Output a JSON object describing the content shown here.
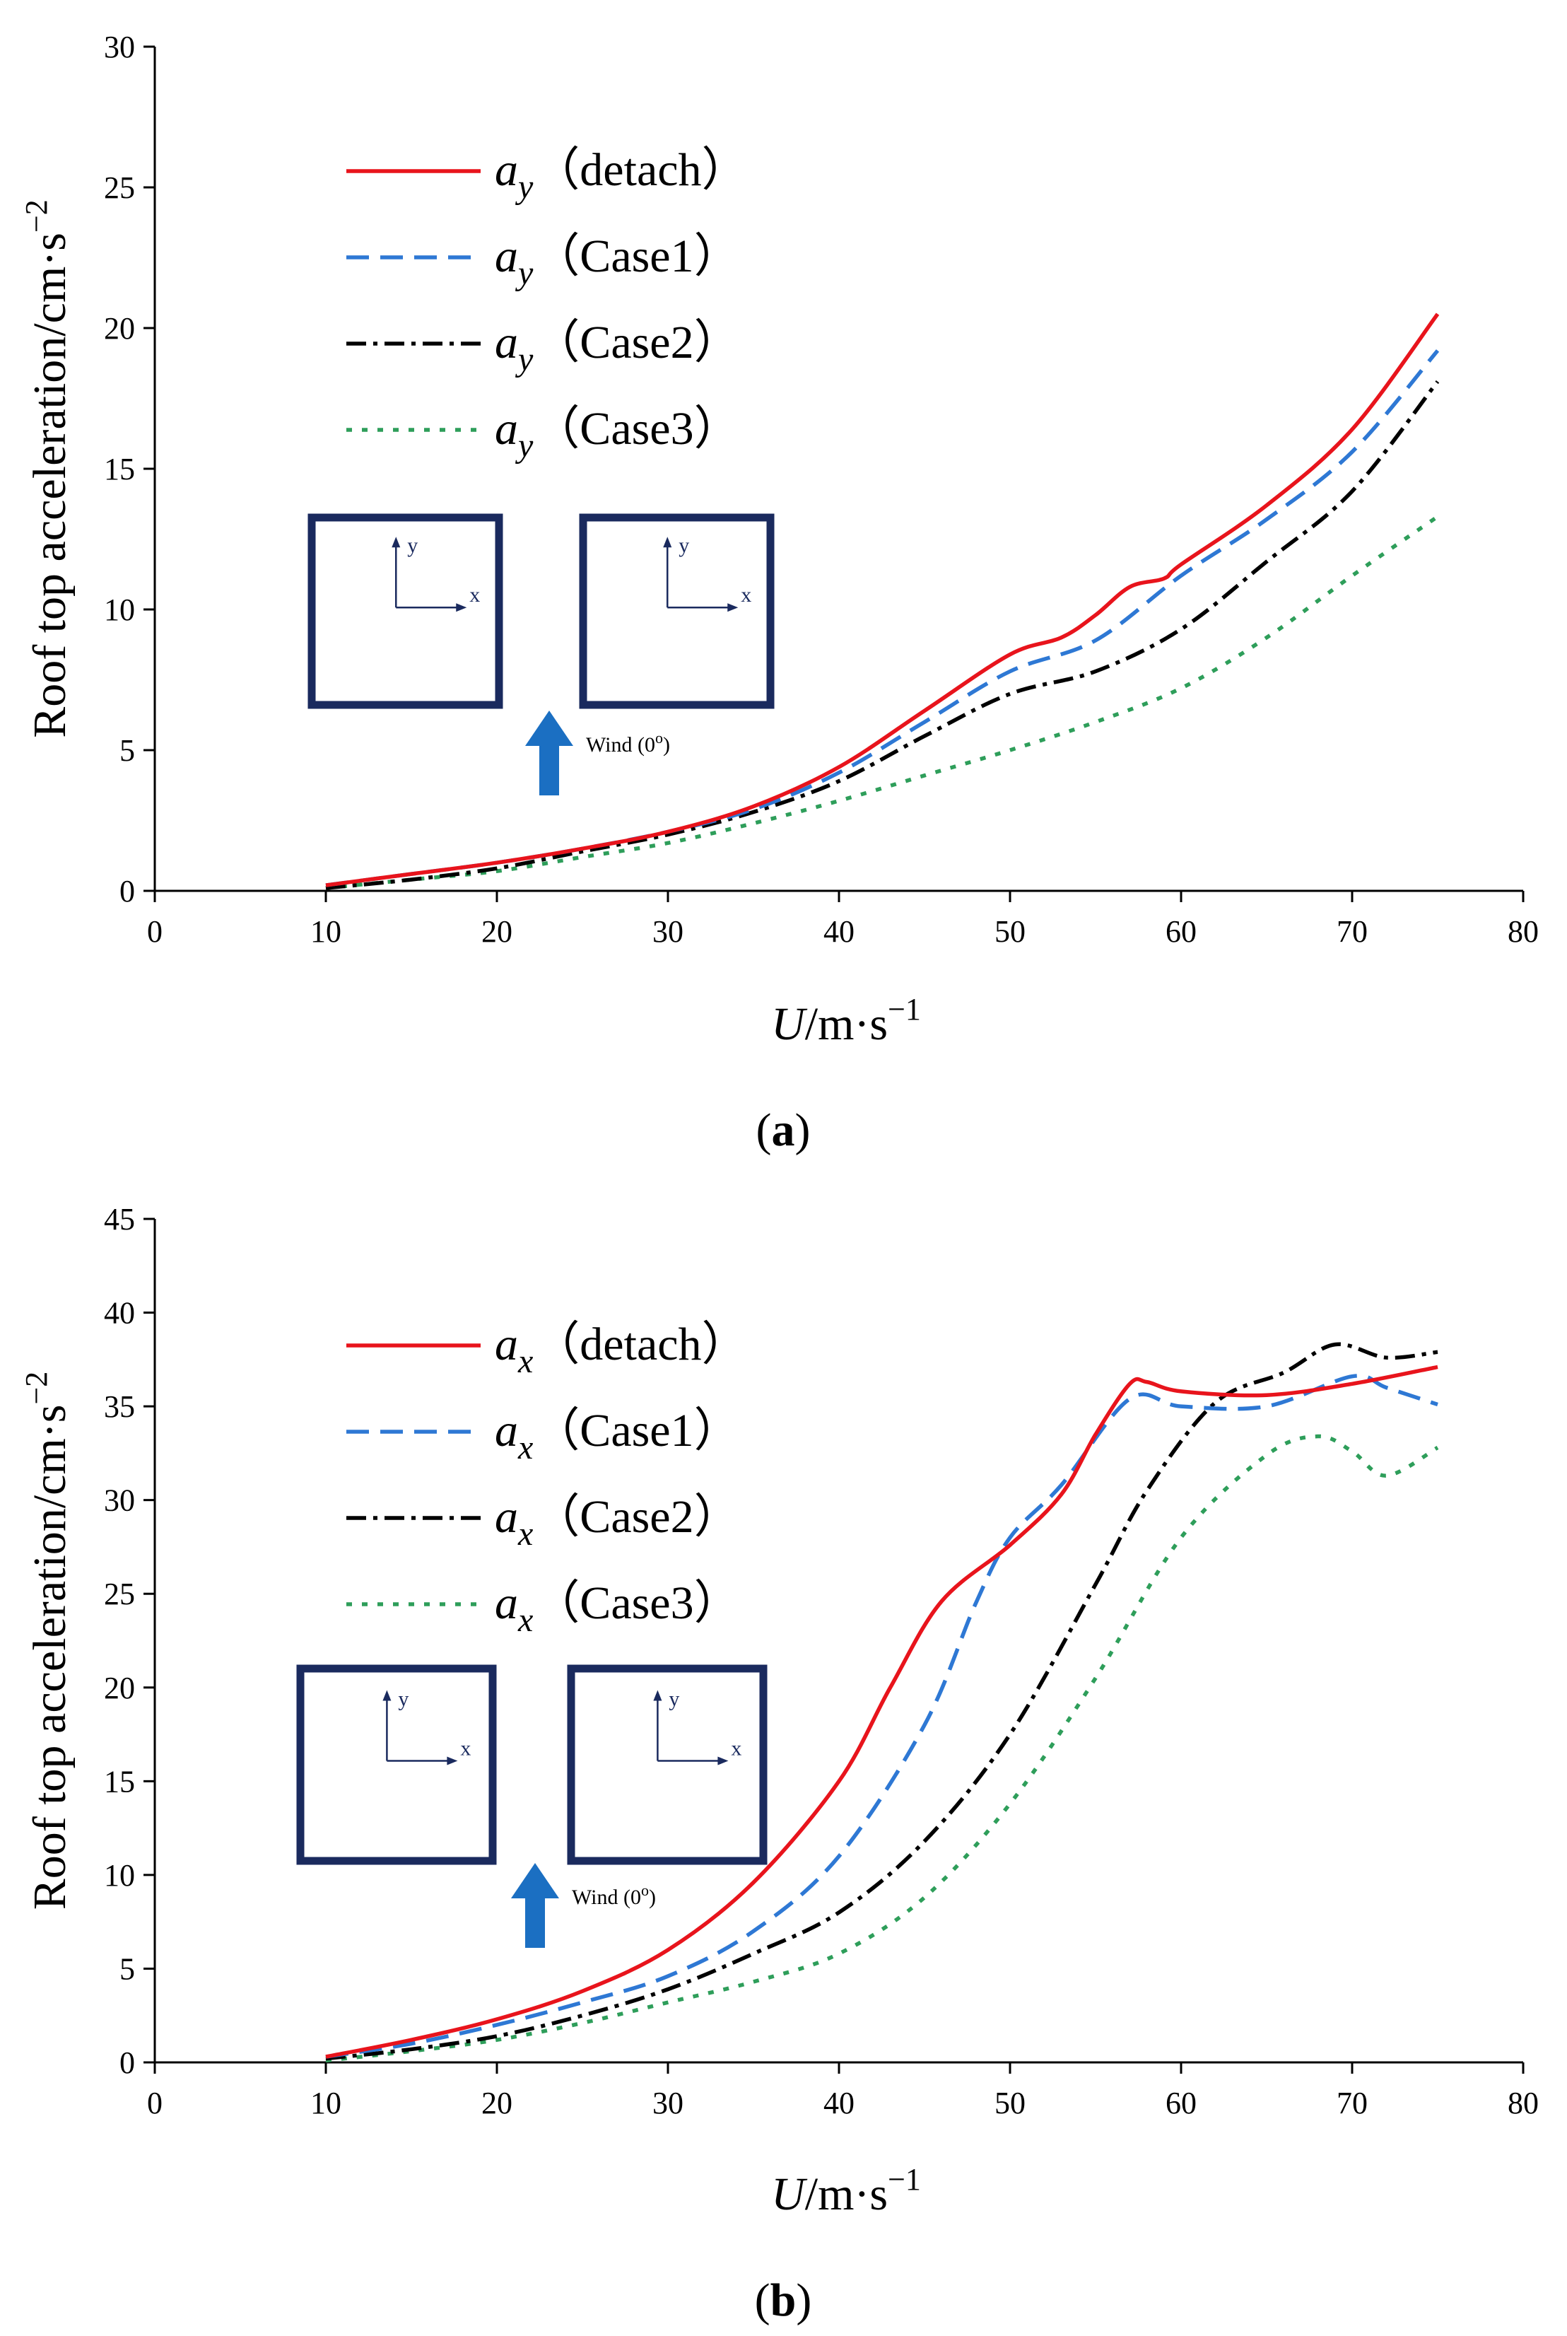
{
  "chart_data": [
    {
      "type": "line",
      "panel_label": "a",
      "xlabel_var": "U",
      "xlabel_unit": "/m·s",
      "xlabel_exp": "−1",
      "ylabel": "Roof top acceleration/cm·s",
      "ylabel_exp": "−2",
      "xlim": [
        0,
        80
      ],
      "ylim": [
        0,
        30
      ],
      "xticks": [
        0,
        10,
        20,
        30,
        40,
        50,
        60,
        70,
        80
      ],
      "yticks": [
        0,
        5,
        10,
        15,
        20,
        25,
        30
      ],
      "legend_position": "upper-left",
      "series": [
        {
          "name": "a_y (detach)",
          "var": "a",
          "sub": "y",
          "case": "（detach）",
          "color": "#e8141c",
          "dash": "",
          "x": [
            10,
            15,
            20,
            25,
            30,
            35,
            40,
            45,
            50,
            53,
            55,
            57,
            59,
            60,
            65,
            70,
            75
          ],
          "y": [
            0.2,
            0.6,
            1.0,
            1.5,
            2.1,
            3.0,
            4.4,
            6.4,
            8.4,
            9.0,
            9.8,
            10.8,
            11.1,
            11.6,
            13.7,
            16.4,
            20.5
          ]
        },
        {
          "name": "a_y (Case1)",
          "var": "a",
          "sub": "y",
          "case": "（Case1）",
          "color": "#2e78d4",
          "dash": "32,16",
          "x": [
            10,
            15,
            20,
            25,
            30,
            35,
            40,
            45,
            50,
            55,
            60,
            65,
            70,
            75
          ],
          "y": [
            0.2,
            0.6,
            1.0,
            1.5,
            2.1,
            2.9,
            4.2,
            6.0,
            7.8,
            8.9,
            11.2,
            13.2,
            15.6,
            19.2
          ]
        },
        {
          "name": "a_y (Case2)",
          "var": "a",
          "sub": "y",
          "case": "（Case2）",
          "color": "#000000",
          "dash": "28,10,6,10",
          "x": [
            10,
            15,
            20,
            25,
            30,
            35,
            40,
            45,
            50,
            55,
            60,
            65,
            70,
            75
          ],
          "y": [
            0.1,
            0.4,
            0.8,
            1.4,
            2.0,
            2.8,
            3.9,
            5.5,
            7.0,
            7.8,
            9.3,
            11.7,
            14.2,
            18.1
          ]
        },
        {
          "name": "a_y (Case3)",
          "var": "a",
          "sub": "y",
          "case": "（Case3）",
          "color": "#2e9e5a",
          "dash": "8,14",
          "x": [
            10,
            15,
            20,
            25,
            30,
            35,
            40,
            45,
            50,
            55,
            60,
            65,
            70,
            75
          ],
          "y": [
            0.1,
            0.4,
            0.7,
            1.2,
            1.7,
            2.4,
            3.2,
            4.1,
            5.0,
            6.0,
            7.2,
            9.0,
            11.2,
            13.3
          ]
        }
      ],
      "inset": {
        "axis_x": "x",
        "axis_y": "y",
        "wind_label": "Wind (0",
        "wind_sup": "o",
        "wind_close": ")"
      }
    },
    {
      "type": "line",
      "panel_label": "b",
      "xlabel_var": "U",
      "xlabel_unit": "/m·s",
      "xlabel_exp": "−1",
      "ylabel": "Roof top acceleration/cm·s",
      "ylabel_exp": "−2",
      "xlim": [
        0,
        80
      ],
      "ylim": [
        0,
        45
      ],
      "xticks": [
        0,
        10,
        20,
        30,
        40,
        50,
        60,
        70,
        80
      ],
      "yticks": [
        0,
        5,
        10,
        15,
        20,
        25,
        30,
        35,
        40,
        45
      ],
      "legend_position": "upper-left",
      "series": [
        {
          "name": "a_x (detach)",
          "var": "a",
          "sub": "x",
          "case": "（detach）",
          "color": "#e8141c",
          "dash": "",
          "x": [
            10,
            15,
            20,
            25,
            30,
            35,
            40,
            43,
            46,
            50,
            53,
            55,
            57,
            58,
            60,
            65,
            70,
            75
          ],
          "y": [
            0.3,
            1.2,
            2.3,
            3.8,
            6.0,
            9.6,
            15.0,
            20.0,
            24.6,
            27.6,
            30.3,
            33.5,
            36.2,
            36.3,
            35.8,
            35.6,
            36.2,
            37.1
          ]
        },
        {
          "name": "a_x (Case1)",
          "var": "a",
          "sub": "x",
          "case": "（Case1）",
          "color": "#2e78d4",
          "dash": "32,16",
          "x": [
            10,
            15,
            20,
            25,
            30,
            35,
            40,
            45,
            48,
            50,
            53,
            57,
            60,
            65,
            70,
            72,
            75
          ],
          "y": [
            0.3,
            1.0,
            2.0,
            3.2,
            4.6,
            7.0,
            11.0,
            18.0,
            24.5,
            28.0,
            30.8,
            35.4,
            35.0,
            35.0,
            36.6,
            36.0,
            35.1
          ]
        },
        {
          "name": "a_x (Case2)",
          "var": "a",
          "sub": "x",
          "case": "（Case2）",
          "color": "#000000",
          "dash": "28,10,6,10",
          "x": [
            10,
            15,
            20,
            25,
            30,
            35,
            40,
            45,
            50,
            55,
            58,
            62,
            66,
            69,
            72,
            75
          ],
          "y": [
            0.2,
            0.7,
            1.4,
            2.5,
            3.9,
            5.8,
            8.0,
            11.8,
            17.5,
            25.5,
            30.5,
            35.2,
            36.8,
            38.3,
            37.6,
            37.9
          ]
        },
        {
          "name": "a_x (Case3)",
          "var": "a",
          "sub": "x",
          "case": "（Case3）",
          "color": "#2e9e5a",
          "dash": "8,14",
          "x": [
            10,
            15,
            20,
            25,
            30,
            35,
            40,
            45,
            50,
            55,
            60,
            65,
            68,
            70,
            72,
            75
          ],
          "y": [
            0.1,
            0.6,
            1.2,
            2.1,
            3.2,
            4.3,
            5.8,
            8.8,
            13.8,
            20.5,
            28.0,
            32.4,
            33.4,
            32.6,
            31.3,
            32.8
          ]
        }
      ],
      "inset": {
        "axis_x": "x",
        "axis_y": "y",
        "wind_label": "Wind (0",
        "wind_sup": "o",
        "wind_close": ")"
      }
    }
  ]
}
